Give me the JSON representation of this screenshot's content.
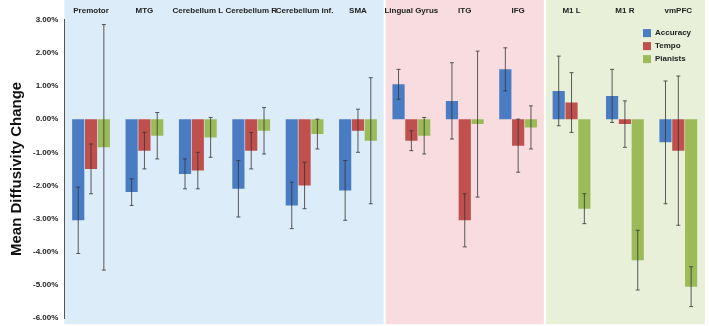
{
  "chart_data": {
    "type": "bar",
    "y_label": "Mean Diffusivity Change",
    "categories": [
      "Premotor",
      "MTG",
      "Cerebellum L",
      "Cerebellum R",
      "Cerebellum inf.",
      "SMA",
      "Lingual Gyrus",
      "ITG",
      "IFG",
      "M1 L",
      "M1 R",
      "vmPFC"
    ],
    "series": [
      {
        "name": "Accuracy",
        "color": "#4a7cc4",
        "values": [
          -3.05,
          -2.2,
          -1.65,
          -2.1,
          -2.6,
          -2.15,
          1.05,
          0.55,
          1.5,
          0.85,
          0.7,
          -0.7
        ],
        "errors": [
          1.0,
          0.4,
          0.45,
          0.85,
          0.7,
          0.9,
          0.45,
          1.15,
          0.65,
          1.05,
          0.8,
          1.85
        ]
      },
      {
        "name": "Tempo",
        "color": "#c0504d",
        "values": [
          -1.5,
          -0.95,
          -1.55,
          -0.95,
          -2.0,
          -0.35,
          -0.65,
          -3.05,
          -0.8,
          0.5,
          -0.15,
          -0.95
        ],
        "errors": [
          0.75,
          0.55,
          0.55,
          0.55,
          0.7,
          0.65,
          0.3,
          0.8,
          0.8,
          0.9,
          0.7,
          2.25
        ]
      },
      {
        "name": "Pianists",
        "color": "#9bbb59",
        "values": [
          -0.85,
          -0.5,
          -0.55,
          -0.35,
          -0.45,
          -0.65,
          -0.5,
          -0.15,
          -0.25,
          -2.7,
          -4.25,
          -5.05
        ],
        "errors": [
          3.7,
          0.7,
          0.6,
          0.7,
          0.45,
          1.9,
          0.55,
          2.2,
          0.65,
          0.45,
          0.9,
          0.6
        ]
      }
    ],
    "ylim": [
      -6,
      3
    ],
    "yticks": [
      {
        "value": -6,
        "label": "-6.00%"
      },
      {
        "value": -5,
        "label": "-5.00%"
      },
      {
        "value": -4,
        "label": "-4.00%"
      },
      {
        "value": -3,
        "label": "-3.00%"
      },
      {
        "value": -2,
        "label": "-2.00%"
      },
      {
        "value": -1,
        "label": "-1.00%"
      },
      {
        "value": 0,
        "label": "0.00%"
      },
      {
        "value": 1,
        "label": "1.00%"
      },
      {
        "value": 2,
        "label": "2.00%"
      },
      {
        "value": 3,
        "label": "3.00%"
      }
    ],
    "grid": false,
    "legend": "upper right"
  }
}
